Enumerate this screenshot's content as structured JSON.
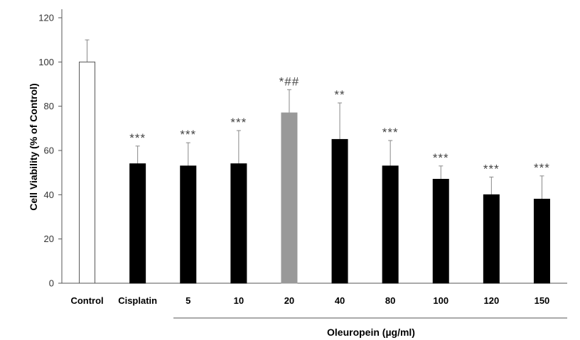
{
  "chart_data": {
    "type": "bar",
    "ylabel": "Cell Viability (% of Control)",
    "ylim": [
      0,
      120
    ],
    "yticks": [
      0,
      20,
      40,
      60,
      80,
      100,
      120
    ],
    "categories": [
      "Control",
      "Cisplatin",
      "5",
      "10",
      "20",
      "40",
      "80",
      "100",
      "120",
      "150"
    ],
    "values": [
      100,
      54,
      53,
      54,
      77,
      65,
      53,
      47,
      40,
      38
    ],
    "error_upper": [
      110,
      62,
      63.5,
      69,
      87.5,
      81.5,
      64.5,
      53,
      48,
      48.5
    ],
    "significance": [
      "",
      "***",
      "***",
      "***",
      "*##",
      "**",
      "***",
      "***",
      "***",
      "***"
    ],
    "bar_colors": [
      "#ffffff",
      "#000000",
      "#000000",
      "#000000",
      "#999999",
      "#000000",
      "#000000",
      "#000000",
      "#000000",
      "#000000"
    ],
    "group_label": "Oleuropein (µg/ml)",
    "group_categories": [
      "5",
      "10",
      "20",
      "40",
      "80",
      "100",
      "120",
      "150"
    ],
    "grid": false
  }
}
